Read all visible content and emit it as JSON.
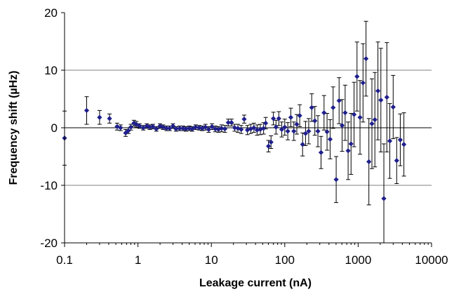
{
  "chart_data": {
    "type": "scatter",
    "xlabel": "Leakage current (nA)",
    "ylabel": "Frequency shift (µHz)",
    "xscale": "log",
    "xlim": [
      0.1,
      10000
    ],
    "ylim": [
      -20,
      20
    ],
    "x_ticks": [
      "0.1",
      "1",
      "10",
      "100",
      "1000",
      "10000"
    ],
    "y_ticks": [
      "20",
      "10",
      "0",
      "-10",
      "-20"
    ],
    "grid": "horizontal",
    "legend": "none",
    "colors": {
      "marker": "#1f1f8c",
      "errorbar": "#000000",
      "grid": "#808080"
    },
    "points": [
      {
        "x": 0.1,
        "y": -1.8,
        "err": 4.7
      },
      {
        "x": 0.2,
        "y": 3.0,
        "err": 2.4
      },
      {
        "x": 0.3,
        "y": 1.8,
        "err": 1.2
      },
      {
        "x": 0.41,
        "y": 1.6,
        "err": 0.8
      },
      {
        "x": 0.52,
        "y": 0.2,
        "err": 0.6
      },
      {
        "x": 0.58,
        "y": 0.0,
        "err": 0.5
      },
      {
        "x": 0.68,
        "y": -0.9,
        "err": 0.6
      },
      {
        "x": 0.74,
        "y": -0.5,
        "err": 0.5
      },
      {
        "x": 0.8,
        "y": 0.1,
        "err": 0.5
      },
      {
        "x": 0.88,
        "y": 0.8,
        "err": 0.5
      },
      {
        "x": 0.95,
        "y": 0.6,
        "err": 0.5
      },
      {
        "x": 1.05,
        "y": 0.3,
        "err": 0.4
      },
      {
        "x": 1.18,
        "y": 0.0,
        "err": 0.4
      },
      {
        "x": 1.32,
        "y": 0.3,
        "err": 0.4
      },
      {
        "x": 1.45,
        "y": 0.1,
        "err": 0.4
      },
      {
        "x": 1.6,
        "y": 0.2,
        "err": 0.4
      },
      {
        "x": 1.78,
        "y": -0.2,
        "err": 0.4
      },
      {
        "x": 2.0,
        "y": 0.3,
        "err": 0.4
      },
      {
        "x": 2.2,
        "y": 0.1,
        "err": 0.4
      },
      {
        "x": 2.45,
        "y": -0.1,
        "err": 0.4
      },
      {
        "x": 2.7,
        "y": -0.1,
        "err": 0.4
      },
      {
        "x": 3.0,
        "y": 0.3,
        "err": 0.4
      },
      {
        "x": 3.3,
        "y": -0.2,
        "err": 0.4
      },
      {
        "x": 3.7,
        "y": -0.1,
        "err": 0.4
      },
      {
        "x": 4.1,
        "y": -0.1,
        "err": 0.4
      },
      {
        "x": 4.5,
        "y": -0.2,
        "err": 0.4
      },
      {
        "x": 5.0,
        "y": -0.1,
        "err": 0.4
      },
      {
        "x": 5.5,
        "y": -0.2,
        "err": 0.4
      },
      {
        "x": 6.1,
        "y": 0.1,
        "err": 0.4
      },
      {
        "x": 6.8,
        "y": 0.0,
        "err": 0.4
      },
      {
        "x": 7.5,
        "y": -0.1,
        "err": 0.4
      },
      {
        "x": 8.3,
        "y": 0.1,
        "err": 0.5
      },
      {
        "x": 9.2,
        "y": -0.3,
        "err": 0.5
      },
      {
        "x": 10.2,
        "y": 0.2,
        "err": 0.5
      },
      {
        "x": 11.3,
        "y": -0.2,
        "err": 0.5
      },
      {
        "x": 12.5,
        "y": -0.3,
        "err": 0.5
      },
      {
        "x": 13.8,
        "y": -0.1,
        "err": 0.6
      },
      {
        "x": 15.3,
        "y": -0.2,
        "err": 0.6
      },
      {
        "x": 17.0,
        "y": 0.9,
        "err": 0.6
      },
      {
        "x": 18.8,
        "y": 0.9,
        "err": 0.6
      },
      {
        "x": 20.8,
        "y": 0.0,
        "err": 0.6
      },
      {
        "x": 23.0,
        "y": -0.1,
        "err": 0.7
      },
      {
        "x": 25.5,
        "y": -0.3,
        "err": 0.7
      },
      {
        "x": 28.0,
        "y": 1.5,
        "err": 0.7
      },
      {
        "x": 31.0,
        "y": -0.4,
        "err": 0.8
      },
      {
        "x": 34.5,
        "y": -0.2,
        "err": 0.8
      },
      {
        "x": 38.0,
        "y": 0.0,
        "err": 0.8
      },
      {
        "x": 42.0,
        "y": -0.4,
        "err": 0.9
      },
      {
        "x": 46.5,
        "y": -0.3,
        "err": 0.9
      },
      {
        "x": 51.5,
        "y": -0.1,
        "err": 1.0
      },
      {
        "x": 55.0,
        "y": 0.8,
        "err": 1.0
      },
      {
        "x": 60.0,
        "y": -3.2,
        "err": 1.0
      },
      {
        "x": 65.0,
        "y": -2.5,
        "err": 1.1
      },
      {
        "x": 70.0,
        "y": 1.6,
        "err": 1.1
      },
      {
        "x": 76.0,
        "y": 0.1,
        "err": 1.2
      },
      {
        "x": 83.0,
        "y": 1.6,
        "err": 1.2
      },
      {
        "x": 91.0,
        "y": -0.3,
        "err": 1.3
      },
      {
        "x": 100.0,
        "y": 0.1,
        "err": 1.4
      },
      {
        "x": 110.0,
        "y": -0.6,
        "err": 1.5
      },
      {
        "x": 121.0,
        "y": 1.8,
        "err": 1.6
      },
      {
        "x": 133.0,
        "y": -0.6,
        "err": 1.6
      },
      {
        "x": 146.0,
        "y": 0.6,
        "err": 1.7
      },
      {
        "x": 160.0,
        "y": 2.1,
        "err": 1.9
      },
      {
        "x": 175.0,
        "y": -2.9,
        "err": 2.0
      },
      {
        "x": 192.0,
        "y": -1.0,
        "err": 2.1
      },
      {
        "x": 212.0,
        "y": -0.6,
        "err": 2.2
      },
      {
        "x": 233.0,
        "y": 3.5,
        "err": 2.4
      },
      {
        "x": 257.0,
        "y": 1.2,
        "err": 2.5
      },
      {
        "x": 283.0,
        "y": -0.6,
        "err": 2.7
      },
      {
        "x": 312.0,
        "y": -4.3,
        "err": 2.8
      },
      {
        "x": 343.0,
        "y": 2.6,
        "err": 3.0
      },
      {
        "x": 377.0,
        "y": -0.7,
        "err": 3.2
      },
      {
        "x": 415.0,
        "y": -2.0,
        "err": 3.4
      },
      {
        "x": 456.0,
        "y": 3.5,
        "err": 3.6
      },
      {
        "x": 502.0,
        "y": -9.0,
        "err": 4.0
      },
      {
        "x": 550.0,
        "y": 4.7,
        "err": 4.0
      },
      {
        "x": 605.0,
        "y": 0.4,
        "err": 4.5
      },
      {
        "x": 665.0,
        "y": 2.6,
        "err": 4.8
      },
      {
        "x": 730.0,
        "y": -4.0,
        "err": 5.0
      },
      {
        "x": 800.0,
        "y": -2.8,
        "err": 5.3
      },
      {
        "x": 880.0,
        "y": 2.3,
        "err": 5.6
      },
      {
        "x": 965.0,
        "y": 8.9,
        "err": 6.0
      },
      {
        "x": 1060.0,
        "y": 1.8,
        "err": 6.4
      },
      {
        "x": 1165.0,
        "y": 7.8,
        "err": 6.8
      },
      {
        "x": 1280.0,
        "y": 12.0,
        "err": 6.5
      },
      {
        "x": 1400.0,
        "y": -5.9,
        "err": 7.5
      },
      {
        "x": 1540.0,
        "y": 0.7,
        "err": 7.8
      },
      {
        "x": 1690.0,
        "y": 1.4,
        "err": 8.2
      },
      {
        "x": 1860.0,
        "y": 6.4,
        "err": 8.5
      },
      {
        "x": 2040.0,
        "y": 4.8,
        "err": 9.0
      },
      {
        "x": 2240.0,
        "y": -12.3,
        "err": 9.5
      },
      {
        "x": 2460.0,
        "y": 5.3,
        "err": 9.5
      },
      {
        "x": 2700.0,
        "y": -2.3,
        "err": 6.5
      },
      {
        "x": 3000.0,
        "y": 3.6,
        "err": 5.5
      },
      {
        "x": 3350.0,
        "y": -5.7,
        "err": 4.0
      },
      {
        "x": 3750.0,
        "y": -2.1,
        "err": 4.5
      },
      {
        "x": 4200.0,
        "y": -2.9,
        "err": 5.5
      }
    ]
  }
}
